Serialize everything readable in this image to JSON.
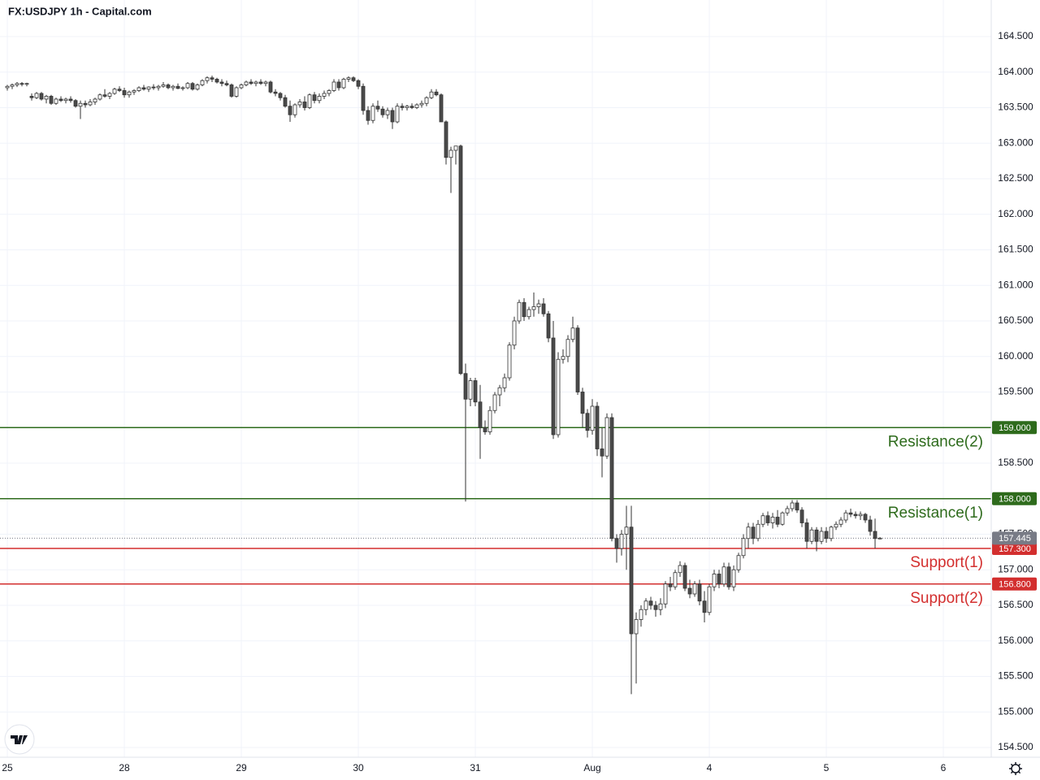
{
  "chart_data": {
    "type": "candlestick",
    "title": "FX:USDJPY 1h - Capital.com",
    "up_color": "#ffffff",
    "down_color": "#4a4a4a",
    "wick_color": "#333333",
    "grid": true,
    "xlim": [
      -1.5,
      201.83
    ],
    "ylim": [
      154.363,
      165.014
    ],
    "xticks": [
      {
        "value": 0,
        "label": "25"
      },
      {
        "value": 24,
        "label": "28"
      },
      {
        "value": 48,
        "label": "29"
      },
      {
        "value": 72,
        "label": "30"
      },
      {
        "value": 96,
        "label": "31"
      },
      {
        "value": 120,
        "label": "Aug"
      },
      {
        "value": 144,
        "label": "4"
      },
      {
        "value": 168,
        "label": "5"
      },
      {
        "value": 192,
        "label": "6"
      }
    ],
    "yticks": [
      {
        "value": 154.5,
        "label": "154.500"
      },
      {
        "value": 155,
        "label": "155.000"
      },
      {
        "value": 155.5,
        "label": "155.500"
      },
      {
        "value": 156,
        "label": "156.000"
      },
      {
        "value": 156.5,
        "label": "156.500"
      },
      {
        "value": 157,
        "label": "157.000"
      },
      {
        "value": 157.5,
        "label": "157.500"
      },
      {
        "value": 158,
        "label": "158.000"
      },
      {
        "value": 158.5,
        "label": "158.500"
      },
      {
        "value": 159,
        "label": "159.000"
      },
      {
        "value": 159.5,
        "label": "159.500"
      },
      {
        "value": 160,
        "label": "160.000"
      },
      {
        "value": 160.5,
        "label": "160.500"
      },
      {
        "value": 161,
        "label": "161.000"
      },
      {
        "value": 161.5,
        "label": "161.500"
      },
      {
        "value": 162,
        "label": "162.000"
      },
      {
        "value": 162.5,
        "label": "162.500"
      },
      {
        "value": 163,
        "label": "163.000"
      },
      {
        "value": 163.5,
        "label": "163.500"
      },
      {
        "value": 164,
        "label": "164.000"
      },
      {
        "value": 164.5,
        "label": "164.500"
      }
    ],
    "levels": [
      {
        "name": "Resistance(2)",
        "value": 159.0,
        "label": "159.000",
        "color": "#2e6b1c"
      },
      {
        "name": "Resistance(1)",
        "value": 158.0,
        "label": "158.000",
        "color": "#2e6b1c"
      },
      {
        "name": "Support(1)",
        "value": 157.3,
        "label": "157.300",
        "color": "#d32f2f"
      },
      {
        "name": "Support(2)",
        "value": 156.8,
        "label": "156.800",
        "color": "#d32f2f"
      }
    ],
    "current_price": {
      "value": 157.445,
      "label": "157.445",
      "color": "#787b86"
    },
    "ohlc": [
      [
        163.78,
        163.82,
        163.74,
        163.8
      ],
      [
        163.8,
        163.84,
        163.76,
        163.82
      ],
      [
        163.82,
        163.86,
        163.79,
        163.84
      ],
      [
        163.84,
        163.86,
        163.8,
        163.83
      ],
      [
        163.83,
        163.85,
        163.8,
        163.84
      ],
      [
        163.66,
        163.7,
        163.6,
        163.64
      ],
      [
        163.64,
        163.72,
        163.62,
        163.7
      ],
      [
        163.7,
        163.72,
        163.6,
        163.62
      ],
      [
        163.62,
        163.68,
        163.56,
        163.66
      ],
      [
        163.66,
        163.68,
        163.54,
        163.56
      ],
      [
        163.56,
        163.64,
        163.54,
        163.62
      ],
      [
        163.62,
        163.66,
        163.58,
        163.6
      ],
      [
        163.6,
        163.64,
        163.56,
        163.62
      ],
      [
        163.62,
        163.66,
        163.57,
        163.6
      ],
      [
        163.6,
        163.62,
        163.5,
        163.52
      ],
      [
        163.52,
        163.6,
        163.34,
        163.56
      ],
      [
        163.56,
        163.6,
        163.5,
        163.54
      ],
      [
        163.54,
        163.62,
        163.52,
        163.58
      ],
      [
        163.58,
        163.64,
        163.54,
        163.62
      ],
      [
        163.62,
        163.7,
        163.6,
        163.68
      ],
      [
        163.68,
        163.76,
        163.64,
        163.66
      ],
      [
        163.66,
        163.72,
        163.62,
        163.7
      ],
      [
        163.7,
        163.78,
        163.68,
        163.76
      ],
      [
        163.76,
        163.8,
        163.72,
        163.74
      ],
      [
        163.74,
        163.78,
        163.64,
        163.68
      ],
      [
        163.68,
        163.74,
        163.64,
        163.72
      ],
      [
        163.72,
        163.76,
        163.68,
        163.74
      ],
      [
        163.74,
        163.8,
        163.72,
        163.78
      ],
      [
        163.78,
        163.82,
        163.74,
        163.76
      ],
      [
        163.76,
        163.8,
        163.72,
        163.79
      ],
      [
        163.79,
        163.83,
        163.75,
        163.78
      ],
      [
        163.78,
        163.82,
        163.74,
        163.8
      ],
      [
        163.8,
        163.86,
        163.78,
        163.82
      ],
      [
        163.82,
        163.84,
        163.76,
        163.78
      ],
      [
        163.78,
        163.82,
        163.74,
        163.8
      ],
      [
        163.8,
        163.84,
        163.76,
        163.77
      ],
      [
        163.77,
        163.8,
        163.74,
        163.78
      ],
      [
        163.78,
        163.86,
        163.76,
        163.84
      ],
      [
        163.84,
        163.86,
        163.74,
        163.76
      ],
      [
        163.76,
        163.84,
        163.74,
        163.82
      ],
      [
        163.82,
        163.9,
        163.8,
        163.88
      ],
      [
        163.88,
        163.94,
        163.84,
        163.92
      ],
      [
        163.92,
        163.95,
        163.86,
        163.9
      ],
      [
        163.9,
        163.92,
        163.84,
        163.86
      ],
      [
        163.86,
        163.9,
        163.8,
        163.84
      ],
      [
        163.84,
        163.88,
        163.8,
        163.82
      ],
      [
        163.82,
        163.84,
        163.64,
        163.66
      ],
      [
        163.66,
        163.8,
        163.64,
        163.78
      ],
      [
        163.78,
        163.84,
        163.76,
        163.82
      ],
      [
        163.82,
        163.88,
        163.8,
        163.86
      ],
      [
        163.86,
        163.9,
        163.82,
        163.84
      ],
      [
        163.84,
        163.88,
        163.8,
        163.86
      ],
      [
        163.86,
        163.9,
        163.82,
        163.84
      ],
      [
        163.84,
        163.88,
        163.8,
        163.86
      ],
      [
        163.86,
        163.88,
        163.7,
        163.72
      ],
      [
        163.72,
        163.76,
        163.66,
        163.7
      ],
      [
        163.7,
        163.72,
        163.6,
        163.64
      ],
      [
        163.64,
        163.68,
        163.5,
        163.52
      ],
      [
        163.52,
        163.6,
        163.3,
        163.4
      ],
      [
        163.4,
        163.56,
        163.36,
        163.54
      ],
      [
        163.54,
        163.62,
        163.5,
        163.58
      ],
      [
        163.58,
        163.66,
        163.46,
        163.5
      ],
      [
        163.5,
        163.7,
        163.48,
        163.68
      ],
      [
        163.68,
        163.72,
        163.56,
        163.6
      ],
      [
        163.6,
        163.7,
        163.56,
        163.66
      ],
      [
        163.66,
        163.74,
        163.62,
        163.7
      ],
      [
        163.7,
        163.76,
        163.66,
        163.74
      ],
      [
        163.74,
        163.9,
        163.72,
        163.86
      ],
      [
        163.86,
        163.9,
        163.74,
        163.78
      ],
      [
        163.78,
        163.92,
        163.76,
        163.9
      ],
      [
        163.9,
        163.94,
        163.86,
        163.92
      ],
      [
        163.92,
        163.94,
        163.86,
        163.88
      ],
      [
        163.88,
        163.9,
        163.76,
        163.8
      ],
      [
        163.8,
        163.84,
        163.4,
        163.46
      ],
      [
        163.46,
        163.52,
        163.26,
        163.32
      ],
      [
        163.32,
        163.56,
        163.28,
        163.52
      ],
      [
        163.52,
        163.6,
        163.44,
        163.48
      ],
      [
        163.48,
        163.52,
        163.36,
        163.4
      ],
      [
        163.4,
        163.5,
        163.34,
        163.46
      ],
      [
        163.46,
        163.5,
        163.2,
        163.3
      ],
      [
        163.3,
        163.56,
        163.28,
        163.52
      ],
      [
        163.52,
        163.56,
        163.46,
        163.5
      ],
      [
        163.5,
        163.54,
        163.46,
        163.52
      ],
      [
        163.52,
        163.56,
        163.48,
        163.5
      ],
      [
        163.5,
        163.56,
        163.48,
        163.54
      ],
      [
        163.54,
        163.6,
        163.5,
        163.56
      ],
      [
        163.56,
        163.66,
        163.52,
        163.64
      ],
      [
        163.64,
        163.76,
        163.62,
        163.72
      ],
      [
        163.72,
        163.76,
        163.66,
        163.68
      ],
      [
        163.68,
        163.7,
        163.3,
        163.3
      ],
      [
        163.3,
        163.32,
        162.7,
        162.8
      ],
      [
        162.8,
        162.95,
        162.3,
        162.9
      ],
      [
        162.9,
        162.96,
        162.7,
        162.96
      ],
      [
        162.96,
        162.98,
        159.74,
        159.76
      ],
      [
        159.76,
        159.9,
        157.96,
        159.4
      ],
      [
        159.4,
        159.7,
        159.3,
        159.66
      ],
      [
        159.66,
        159.7,
        159.3,
        159.36
      ],
      [
        159.36,
        159.6,
        158.56,
        159.0
      ],
      [
        159.0,
        159.1,
        158.9,
        158.94
      ],
      [
        158.94,
        159.3,
        158.9,
        159.24
      ],
      [
        159.24,
        159.5,
        159.2,
        159.46
      ],
      [
        159.46,
        159.6,
        159.3,
        159.56
      ],
      [
        159.56,
        159.76,
        159.5,
        159.7
      ],
      [
        159.7,
        160.2,
        159.66,
        160.16
      ],
      [
        160.16,
        160.56,
        160.1,
        160.5
      ],
      [
        160.5,
        160.8,
        160.46,
        160.76
      ],
      [
        160.76,
        160.82,
        160.5,
        160.56
      ],
      [
        160.56,
        160.7,
        160.52,
        160.66
      ],
      [
        160.66,
        160.9,
        160.56,
        160.7
      ],
      [
        160.7,
        160.8,
        160.6,
        160.74
      ],
      [
        160.74,
        160.82,
        160.56,
        160.6
      ],
      [
        160.6,
        160.64,
        160.2,
        160.26
      ],
      [
        160.26,
        160.5,
        158.84,
        158.9
      ],
      [
        158.9,
        160.06,
        158.86,
        159.96
      ],
      [
        159.96,
        160.1,
        159.9,
        160.0
      ],
      [
        160.0,
        160.3,
        159.92,
        160.24
      ],
      [
        160.24,
        160.56,
        160.2,
        160.4
      ],
      [
        160.4,
        160.44,
        159.46,
        159.5
      ],
      [
        159.5,
        159.56,
        159.0,
        159.2
      ],
      [
        159.2,
        159.26,
        158.86,
        158.96
      ],
      [
        158.96,
        159.4,
        158.9,
        159.3
      ],
      [
        159.3,
        159.36,
        158.6,
        158.7
      ],
      [
        158.7,
        159.0,
        158.3,
        158.6
      ],
      [
        158.6,
        159.2,
        158.56,
        159.14
      ],
      [
        159.14,
        159.2,
        157.4,
        157.44
      ],
      [
        157.44,
        157.5,
        157.1,
        157.3
      ],
      [
        157.3,
        157.56,
        157.2,
        157.5
      ],
      [
        157.5,
        157.9,
        157.0,
        157.6
      ],
      [
        157.6,
        157.9,
        155.25,
        156.1
      ],
      [
        156.1,
        156.4,
        155.4,
        156.3
      ],
      [
        156.3,
        156.5,
        156.2,
        156.44
      ],
      [
        156.44,
        156.6,
        156.36,
        156.56
      ],
      [
        156.56,
        156.62,
        156.44,
        156.5
      ],
      [
        156.5,
        156.56,
        156.34,
        156.44
      ],
      [
        156.44,
        156.6,
        156.36,
        156.52
      ],
      [
        156.52,
        156.84,
        156.46,
        156.8
      ],
      [
        156.8,
        156.9,
        156.7,
        156.76
      ],
      [
        156.76,
        157.0,
        156.72,
        156.96
      ],
      [
        156.96,
        157.12,
        156.9,
        157.06
      ],
      [
        157.06,
        157.1,
        156.7,
        156.74
      ],
      [
        156.74,
        156.86,
        156.6,
        156.66
      ],
      [
        156.66,
        156.84,
        156.62,
        156.8
      ],
      [
        156.8,
        156.86,
        156.5,
        156.56
      ],
      [
        156.56,
        156.7,
        156.26,
        156.4
      ],
      [
        156.4,
        156.8,
        156.36,
        156.76
      ],
      [
        156.76,
        157.0,
        156.7,
        156.94
      ],
      [
        156.94,
        157.0,
        156.74,
        156.8
      ],
      [
        156.8,
        157.1,
        156.76,
        157.04
      ],
      [
        157.04,
        157.1,
        156.72,
        156.76
      ],
      [
        156.76,
        157.06,
        156.7,
        157.0
      ],
      [
        157.0,
        157.24,
        156.96,
        157.2
      ],
      [
        157.2,
        157.5,
        157.16,
        157.44
      ],
      [
        157.44,
        157.66,
        157.3,
        157.6
      ],
      [
        157.6,
        157.66,
        157.36,
        157.44
      ],
      [
        157.44,
        157.7,
        157.4,
        157.64
      ],
      [
        157.64,
        157.8,
        157.6,
        157.76
      ],
      [
        157.76,
        157.82,
        157.62,
        157.66
      ],
      [
        157.66,
        157.8,
        157.58,
        157.74
      ],
      [
        157.74,
        157.84,
        157.6,
        157.64
      ],
      [
        157.64,
        157.82,
        157.62,
        157.8
      ],
      [
        157.8,
        157.9,
        157.76,
        157.86
      ],
      [
        157.86,
        157.98,
        157.82,
        157.94
      ],
      [
        157.94,
        157.98,
        157.8,
        157.84
      ],
      [
        157.84,
        157.88,
        157.6,
        157.66
      ],
      [
        157.66,
        157.72,
        157.3,
        157.4
      ],
      [
        157.4,
        157.6,
        157.36,
        157.56
      ],
      [
        157.56,
        157.6,
        157.26,
        157.4
      ],
      [
        157.4,
        157.6,
        157.36,
        157.54
      ],
      [
        157.54,
        157.6,
        157.38,
        157.44
      ],
      [
        157.44,
        157.62,
        157.4,
        157.6
      ],
      [
        157.6,
        157.68,
        157.56,
        157.64
      ],
      [
        157.64,
        157.74,
        157.6,
        157.7
      ],
      [
        157.7,
        157.84,
        157.66,
        157.8
      ],
      [
        157.8,
        157.86,
        157.74,
        157.78
      ],
      [
        157.78,
        157.82,
        157.72,
        157.76
      ],
      [
        157.76,
        157.82,
        157.7,
        157.78
      ],
      [
        157.78,
        157.8,
        157.66,
        157.7
      ],
      [
        157.7,
        157.76,
        157.48,
        157.54
      ],
      [
        157.54,
        157.72,
        157.3,
        157.44
      ],
      [
        157.44,
        157.46,
        157.43,
        157.445
      ]
    ]
  }
}
